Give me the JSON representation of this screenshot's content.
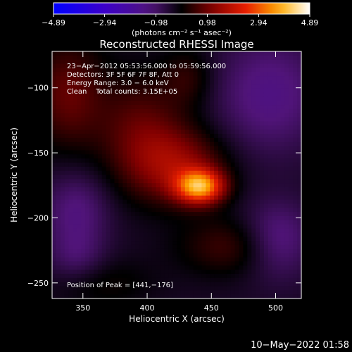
{
  "chart_data": {
    "type": "heatmap",
    "title": "Reconstructed RHESSI Image",
    "xlabel": "Heliocentric X (arcsec)",
    "ylabel": "Heliocentric Y (arcsec)",
    "xlim": [
      326,
      520
    ],
    "ylim": [
      -262,
      -72
    ],
    "xticks": [
      350,
      400,
      450,
      500
    ],
    "yticks": [
      -100,
      -150,
      -200,
      -250
    ],
    "x_tick_labels": [
      "350",
      "400",
      "450",
      "500"
    ],
    "y_tick_labels": [
      "−100",
      "−150",
      "−200",
      "−250"
    ],
    "colorbar": {
      "min": -4.89,
      "max": 4.89,
      "tick_values": [
        -4.89,
        -2.94,
        -0.98,
        0.98,
        2.94,
        4.89
      ],
      "tick_labels": [
        "−4.89",
        "−2.94",
        "−0.98",
        "0.98",
        "2.94",
        "4.89"
      ],
      "unit": "(photons cm⁻² s⁻¹ asec⁻²)"
    },
    "info_lines": [
      "23−Apr−2012 05:53:56.000 to 05:59:56.000",
      "Detectors: 3F 5F 6F 7F 8F, Att 0",
      "Energy Range: 3.0 − 6.0 keV",
      "Clean    Total counts: 3.15E+05"
    ],
    "peak_text": "Position of Peak = [441,−176]",
    "peak": {
      "x": 441,
      "y": -176,
      "value": 4.89
    },
    "components": [
      {
        "kind": "gauss",
        "x": 441,
        "y": -176,
        "sx": 13,
        "sy": 9,
        "amp": 3.6
      },
      {
        "kind": "gauss",
        "x": 424,
        "y": -160,
        "sx": 26,
        "sy": 20,
        "amp": 1.6
      },
      {
        "kind": "gauss",
        "x": 395,
        "y": -132,
        "sx": 24,
        "sy": 30,
        "amp": 1.1
      },
      {
        "kind": "gauss",
        "x": 470,
        "y": -222,
        "sx": 30,
        "sy": 16,
        "amp": 1.0
      },
      {
        "kind": "gauss",
        "x": 338,
        "y": -105,
        "sx": 20,
        "sy": 30,
        "amp": 1.2
      },
      {
        "kind": "gauss",
        "x": 432,
        "y": -92,
        "sx": 14,
        "sy": 16,
        "amp": 0.7
      },
      {
        "kind": "gauss",
        "x": 365,
        "y": -250,
        "sx": 28,
        "sy": 14,
        "amp": 0.5
      },
      {
        "kind": "gauss",
        "x": 500,
        "y": -218,
        "sx": 20,
        "sy": 20,
        "amp": -1.3
      },
      {
        "kind": "gauss",
        "x": 495,
        "y": -105,
        "sx": 30,
        "sy": 32,
        "amp": -1.0
      },
      {
        "kind": "gauss",
        "x": 345,
        "y": -195,
        "sx": 18,
        "sy": 22,
        "amp": -0.9
      },
      {
        "kind": "gauss",
        "x": 345,
        "y": -232,
        "sx": 16,
        "sy": 14,
        "amp": -0.6
      }
    ],
    "base_level": -0.35
  },
  "timestamp": "10−May−2022 01:58"
}
